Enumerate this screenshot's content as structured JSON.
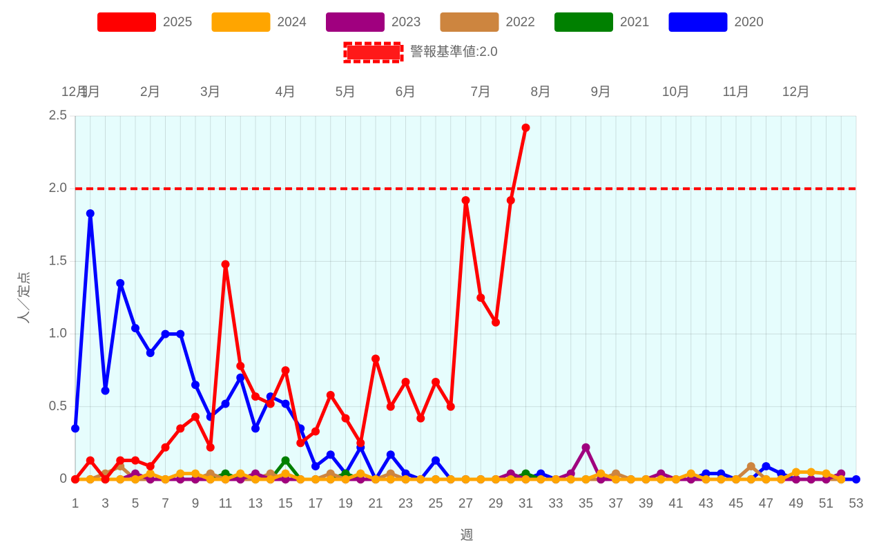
{
  "chart_data": {
    "type": "line",
    "x_label": "週",
    "y_label": "人／定点",
    "x": [
      1,
      2,
      3,
      4,
      5,
      6,
      7,
      8,
      9,
      10,
      11,
      12,
      13,
      14,
      15,
      16,
      17,
      18,
      19,
      20,
      21,
      22,
      23,
      24,
      25,
      26,
      27,
      28,
      29,
      30,
      31,
      32,
      33,
      34,
      35,
      36,
      37,
      38,
      39,
      40,
      41,
      42,
      43,
      44,
      45,
      46,
      47,
      48,
      49,
      50,
      51,
      52,
      53
    ],
    "xlim": [
      1,
      53
    ],
    "xticks": [
      1,
      3,
      5,
      7,
      9,
      11,
      13,
      15,
      17,
      19,
      21,
      23,
      25,
      27,
      29,
      31,
      33,
      35,
      37,
      39,
      41,
      43,
      45,
      47,
      49,
      51,
      53
    ],
    "top_ticks": [
      {
        "value": 1,
        "label": "12月"
      },
      {
        "value": 2,
        "label": "1月"
      },
      {
        "value": 6,
        "label": "2月"
      },
      {
        "value": 10,
        "label": "3月"
      },
      {
        "value": 15,
        "label": "4月"
      },
      {
        "value": 19,
        "label": "5月"
      },
      {
        "value": 23,
        "label": "6月"
      },
      {
        "value": 28,
        "label": "7月"
      },
      {
        "value": 32,
        "label": "8月"
      },
      {
        "value": 36,
        "label": "9月"
      },
      {
        "value": 41,
        "label": "10月"
      },
      {
        "value": 45,
        "label": "11月"
      },
      {
        "value": 49,
        "label": "12月"
      }
    ],
    "ylim": [
      0,
      2.5
    ],
    "yticks": [
      0,
      0.5,
      {
        "value": 1,
        "label": "1.0"
      },
      1.5,
      {
        "value": 2,
        "label": "2.0"
      },
      2.5
    ],
    "grid": true,
    "background": "#e6fdfd",
    "threshold": {
      "name": "警報基準値:2.0",
      "value": 2,
      "color": "#ff0000"
    },
    "series": [
      {
        "name": "2025",
        "color": "#ff0000",
        "values": [
          0,
          0.13,
          0,
          0.13,
          0.13,
          0.09,
          0.22,
          0.35,
          0.43,
          0.22,
          1.48,
          0.78,
          0.57,
          0.52,
          0.75,
          0.25,
          0.33,
          0.58,
          0.42,
          0.25,
          0.83,
          0.5,
          0.67,
          0.42,
          0.67,
          0.5,
          1.92,
          1.25,
          1.08,
          1.92,
          2.42,
          null,
          null,
          null,
          null,
          null,
          null,
          null,
          null,
          null,
          null,
          null,
          null,
          null,
          null,
          null,
          null,
          null,
          null,
          null,
          null,
          null,
          null
        ]
      },
      {
        "name": "2024",
        "color": "#ffa500",
        "values": [
          0,
          0,
          0,
          0,
          0,
          0.04,
          0,
          0.04,
          0.04,
          0,
          0,
          0.04,
          0,
          0,
          0.04,
          0,
          0,
          0,
          0,
          0.04,
          0,
          0,
          0,
          0,
          0,
          0,
          0,
          0,
          0,
          0,
          0,
          0,
          0,
          0,
          0,
          0.04,
          0,
          0,
          0,
          0,
          0,
          0.04,
          0,
          0,
          0,
          0,
          0,
          0,
          0.05,
          0.05,
          0.04,
          0,
          null
        ]
      },
      {
        "name": "2023",
        "color": "#a0007f",
        "values": [
          0,
          0,
          0,
          0,
          0.04,
          0,
          0,
          0,
          0,
          0,
          0,
          0,
          0.04,
          0,
          0,
          0,
          0,
          0,
          0,
          0,
          0,
          0,
          0,
          0,
          0,
          0,
          0,
          0,
          0,
          0.04,
          0,
          0,
          0,
          0.04,
          0.22,
          0,
          0,
          0,
          0,
          0.04,
          0,
          0,
          0,
          0,
          0,
          0,
          0,
          0,
          0,
          0,
          0,
          0.04,
          null
        ]
      },
      {
        "name": "2022",
        "color": "#cd853f",
        "values": [
          0,
          0,
          0.04,
          0.09,
          0,
          0,
          0,
          0,
          0,
          0.04,
          0,
          0,
          0,
          0.04,
          0,
          0,
          0,
          0.04,
          0,
          0,
          0,
          0.04,
          0,
          0,
          0,
          0,
          0,
          0,
          0,
          0,
          0,
          0,
          0,
          0,
          0,
          0,
          0.04,
          0,
          0,
          0,
          0,
          0,
          0,
          0,
          0,
          0.09,
          0,
          0,
          0,
          0,
          0,
          0,
          null
        ]
      },
      {
        "name": "2021",
        "color": "#008000",
        "values": [
          0,
          0,
          0,
          0,
          0,
          0,
          0,
          0,
          0,
          0,
          0.04,
          0,
          0,
          0,
          0.13,
          0,
          0,
          0,
          0.04,
          0,
          0,
          0,
          0,
          0,
          0,
          0,
          0,
          0,
          0,
          0,
          0.04,
          0,
          0,
          0,
          0,
          0,
          0,
          0,
          0,
          0,
          0,
          0,
          0,
          0,
          0,
          0,
          0,
          0,
          0,
          0,
          0,
          0,
          null
        ]
      },
      {
        "name": "2020",
        "color": "#0000ff",
        "values": [
          0.35,
          1.83,
          0.61,
          1.35,
          1.04,
          0.87,
          1.0,
          1.0,
          0.65,
          0.43,
          0.52,
          0.7,
          0.35,
          0.57,
          0.52,
          0.35,
          0.09,
          0.17,
          0.04,
          0.22,
          0,
          0.17,
          0.04,
          0,
          0.13,
          0,
          0,
          0,
          0,
          0,
          0,
          0.04,
          0,
          0,
          0,
          0,
          0,
          0,
          0,
          0,
          0,
          0,
          0.04,
          0.04,
          0,
          0,
          0.09,
          0.04,
          0,
          0,
          0,
          0,
          0
        ]
      }
    ]
  }
}
